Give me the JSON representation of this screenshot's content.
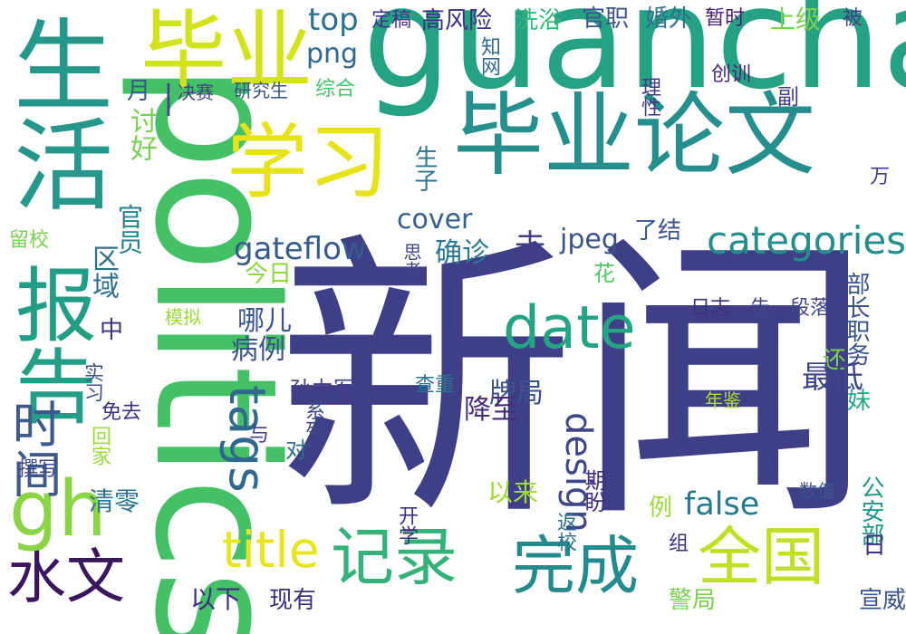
{
  "words": [
    {
      "text": "新闻",
      "color": "#3f3f87",
      "vertical": false
    },
    {
      "text": "politics",
      "color": "#44c167",
      "vertical": true
    },
    {
      "text": "guancha",
      "color": "#25a283",
      "vertical": false
    },
    {
      "text": "毕业论文",
      "color": "#248f8c",
      "vertical": false
    },
    {
      "text": "生活",
      "color": "#25988b",
      "vertical": true
    },
    {
      "text": "毕业",
      "color": "#d2e21b",
      "vertical": false
    },
    {
      "text": "学习",
      "color": "#e6e419",
      "vertical": false
    },
    {
      "text": "—",
      "color": "#43468c",
      "vertical": true
    },
    {
      "text": "报告",
      "color": "#229e86",
      "vertical": true
    },
    {
      "text": "全国",
      "color": "#c1df23",
      "vertical": false
    },
    {
      "text": "记录",
      "color": "#33b27a",
      "vertical": false
    },
    {
      "text": "完成",
      "color": "#218b8d",
      "vertical": false
    },
    {
      "text": "水文",
      "color": "#3a165f",
      "vertical": false
    },
    {
      "text": "gh",
      "color": "#8bd445",
      "vertical": false
    },
    {
      "text": "时间",
      "color": "#3d5a8c",
      "vertical": true
    },
    {
      "text": "date",
      "color": "#25a484",
      "vertical": false
    },
    {
      "text": "tags",
      "color": "#31688e",
      "vertical": true
    },
    {
      "text": "title",
      "color": "#e7e51b",
      "vertical": false
    },
    {
      "text": "categories",
      "color": "#238e8c",
      "vertical": false
    },
    {
      "text": "design",
      "color": "#3f4788",
      "vertical": true
    },
    {
      "text": "gateflow",
      "color": "#375b8d",
      "vertical": false
    },
    {
      "text": "cover",
      "color": "#34618d",
      "vertical": false
    },
    {
      "text": "jpeg",
      "color": "#3b528b",
      "vertical": false
    },
    {
      "text": "top",
      "color": "#2c718e",
      "vertical": false
    },
    {
      "text": "png",
      "color": "#31688e",
      "vertical": false
    },
    {
      "text": "false",
      "color": "#2a788e",
      "vertical": false
    },
    {
      "text": "高风险",
      "color": "#3e2f80",
      "vertical": false
    },
    {
      "text": "洗浴",
      "color": "#35b779",
      "vertical": false
    },
    {
      "text": "官职",
      "color": "#3a548c",
      "vertical": false
    },
    {
      "text": "婚外",
      "color": "#2d718e",
      "vertical": false
    },
    {
      "text": "暂时",
      "color": "#481c6e",
      "vertical": false
    },
    {
      "text": "上级",
      "color": "#7ad151",
      "vertical": false
    },
    {
      "text": "被",
      "color": "#433e85",
      "vertical": false
    },
    {
      "text": "定稿",
      "color": "#40358a",
      "vertical": false
    },
    {
      "text": "知网",
      "color": "#31688e",
      "vertical": true
    },
    {
      "text": "综合",
      "color": "#4ac16d",
      "vertical": false
    },
    {
      "text": "决赛",
      "color": "#433e85",
      "vertical": false
    },
    {
      "text": "研究生",
      "color": "#3b528b",
      "vertical": false
    },
    {
      "text": "月",
      "color": "#38598c",
      "vertical": false
    },
    {
      "text": "讨好",
      "color": "#7ad151",
      "vertical": true
    },
    {
      "text": "理性",
      "color": "#443983",
      "vertical": true
    },
    {
      "text": "创训",
      "color": "#482878",
      "vertical": false
    },
    {
      "text": "副",
      "color": "#424086",
      "vertical": false
    },
    {
      "text": "生子",
      "color": "#2a768e",
      "vertical": true
    },
    {
      "text": "官员",
      "color": "#26828e",
      "vertical": true
    },
    {
      "text": "万",
      "color": "#433e85",
      "vertical": false
    },
    {
      "text": "了结",
      "color": "#3a548c",
      "vertical": false
    },
    {
      "text": "去",
      "color": "#433e85",
      "vertical": false
    },
    {
      "text": "确诊",
      "color": "#2a788e",
      "vertical": false
    },
    {
      "text": "区域",
      "color": "#2d718e",
      "vertical": true
    },
    {
      "text": "今日",
      "color": "#90d743",
      "vertical": false
    },
    {
      "text": "留校",
      "color": "#7ad151",
      "vertical": false
    },
    {
      "text": "思考",
      "color": "#3f4788",
      "vertical": true
    },
    {
      "text": "花",
      "color": "#52c569",
      "vertical": false
    },
    {
      "text": "模拟",
      "color": "#9bd93c",
      "vertical": false
    },
    {
      "text": "哪儿",
      "color": "#3a548c",
      "vertical": false
    },
    {
      "text": "中",
      "color": "#3e2f80",
      "vertical": false
    },
    {
      "text": "病例",
      "color": "#3a548c",
      "vertical": false
    },
    {
      "text": "日志",
      "color": "#3e2f80",
      "vertical": false
    },
    {
      "text": "告一段落",
      "color": "#414487",
      "vertical": false
    },
    {
      "text": "部长职务",
      "color": "#3a548c",
      "vertical": true
    },
    {
      "text": "实习",
      "color": "#3b528b",
      "vertical": true
    },
    {
      "text": "孙力军",
      "color": "#424086",
      "vertical": false
    },
    {
      "text": "查重",
      "color": "#2d718e",
      "vertical": false
    },
    {
      "text": "还",
      "color": "#7ad151",
      "vertical": false
    },
    {
      "text": "妹",
      "color": "#22a884",
      "vertical": false
    },
    {
      "text": "最低",
      "color": "#3f4788",
      "vertical": false
    },
    {
      "text": "年鉴",
      "color": "#b5de2b",
      "vertical": false
    },
    {
      "text": "系列",
      "color": "#3f4788",
      "vertical": true
    },
    {
      "text": "牌局",
      "color": "#3b528b",
      "vertical": false
    },
    {
      "text": "降至",
      "color": "#472c7a",
      "vertical": false
    },
    {
      "text": "免去",
      "color": "#3e2f80",
      "vertical": false
    },
    {
      "text": "回家",
      "color": "#9bd93c",
      "vertical": true
    },
    {
      "text": "与",
      "color": "#424086",
      "vertical": false
    },
    {
      "text": "对",
      "color": "#2d718e",
      "vertical": false
    },
    {
      "text": "撰写",
      "color": "#3f4788",
      "vertical": false
    },
    {
      "text": "以来",
      "color": "#a0da39",
      "vertical": false
    },
    {
      "text": "期盼",
      "color": "#3e2f80",
      "vertical": true
    },
    {
      "text": "公安部",
      "color": "#1f978b",
      "vertical": true
    },
    {
      "text": "数值",
      "color": "#3a548c",
      "vertical": false
    },
    {
      "text": "清零",
      "color": "#2d718e",
      "vertical": false
    },
    {
      "text": "开学",
      "color": "#3e2f80",
      "vertical": true
    },
    {
      "text": "例",
      "color": "#a0da39",
      "vertical": false
    },
    {
      "text": "返校",
      "color": "#2d718e",
      "vertical": true
    },
    {
      "text": "组",
      "color": "#3e2f80",
      "vertical": false
    },
    {
      "text": "日",
      "color": "#3e2f80",
      "vertical": false
    },
    {
      "text": "现有",
      "color": "#3e2f80",
      "vertical": false
    },
    {
      "text": "以下",
      "color": "#3e2f80",
      "vertical": false
    },
    {
      "text": "警局",
      "color": "#7ad151",
      "vertical": false
    },
    {
      "text": "宣威",
      "color": "#3a548c",
      "vertical": false
    }
  ]
}
